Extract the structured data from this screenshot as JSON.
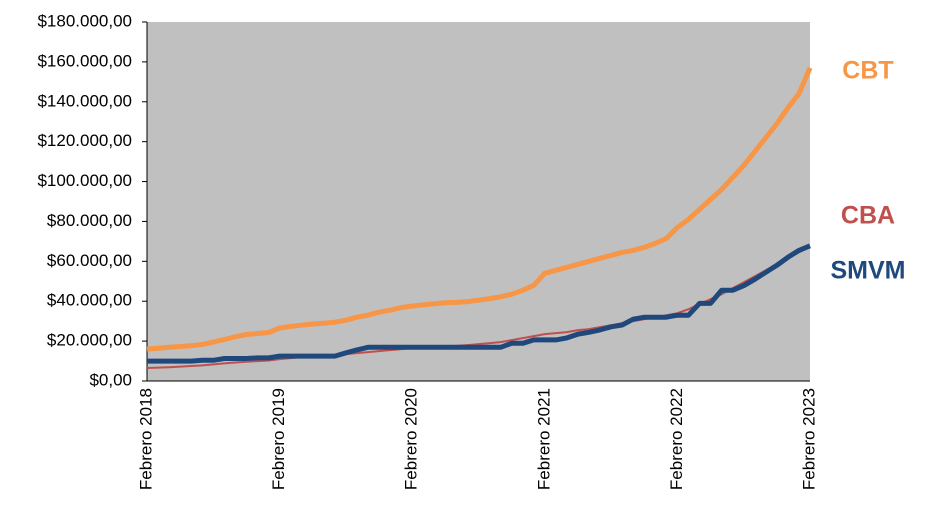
{
  "chart_data": {
    "type": "line",
    "categories": [
      "Febrero 2018",
      null,
      null,
      null,
      null,
      null,
      null,
      null,
      null,
      null,
      null,
      null,
      "Febrero 2019",
      null,
      null,
      null,
      null,
      null,
      null,
      null,
      null,
      null,
      null,
      null,
      "Febrero 2020",
      null,
      null,
      null,
      null,
      null,
      null,
      null,
      null,
      null,
      null,
      null,
      "Febrero 2021",
      null,
      null,
      null,
      null,
      null,
      null,
      null,
      null,
      null,
      null,
      null,
      "Febrero 2022",
      null,
      null,
      null,
      null,
      null,
      null,
      null,
      null,
      null,
      null,
      null,
      "Febrero 2023"
    ],
    "series": [
      {
        "name": "CBT",
        "color": "#f79646",
        "values": [
          16000,
          16400,
          16900,
          17300,
          17700,
          18300,
          19500,
          20800,
          22200,
          23300,
          23800,
          24300,
          26500,
          27400,
          28000,
          28600,
          29000,
          29500,
          30500,
          32000,
          33000,
          34500,
          35500,
          36800,
          37600,
          38200,
          38700,
          39200,
          39400,
          39800,
          40500,
          41300,
          42200,
          43500,
          45500,
          48000,
          54000,
          55500,
          57000,
          58500,
          60000,
          61500,
          63000,
          64500,
          65500,
          67000,
          69000,
          71500,
          77000,
          81000,
          86000,
          91000,
          96000,
          102000,
          108000,
          115000,
          122000,
          129000,
          137000,
          144000,
          157000
        ]
      },
      {
        "name": "CBA",
        "color": "#c0504d",
        "values": [
          6500,
          6700,
          6900,
          7200,
          7500,
          7800,
          8300,
          8800,
          9300,
          9700,
          10000,
          10300,
          11000,
          11500,
          12000,
          12300,
          12600,
          13000,
          13500,
          14000,
          14500,
          15000,
          15500,
          16000,
          16500,
          16800,
          17000,
          17300,
          17600,
          18000,
          18500,
          19000,
          19500,
          20500,
          21500,
          22500,
          23500,
          24000,
          24500,
          25500,
          26000,
          27000,
          28000,
          29000,
          30000,
          31000,
          32000,
          33000,
          34000,
          36000,
          38500,
          41000,
          43500,
          46500,
          49500,
          52500,
          55500,
          58500,
          61500,
          64500,
          67500
        ]
      },
      {
        "name": "SMVM",
        "color": "#1f497d",
        "values": [
          10000,
          10000,
          10000,
          10000,
          10000,
          10400,
          10400,
          11300,
          11300,
          11300,
          11600,
          11600,
          12500,
          12500,
          12500,
          12500,
          12500,
          12500,
          14100,
          15600,
          16900,
          16900,
          16900,
          16900,
          16900,
          16900,
          16900,
          16900,
          16900,
          16900,
          16900,
          16900,
          16900,
          18900,
          18900,
          20600,
          20600,
          20600,
          21600,
          23500,
          24400,
          25600,
          27200,
          28100,
          31000,
          32000,
          32000,
          32000,
          33000,
          33000,
          38900,
          38900,
          45500,
          45500,
          47800,
          51000,
          54500,
          58000,
          62000,
          65500,
          67800
        ]
      }
    ],
    "ylim": [
      0,
      180000
    ],
    "yticks": [
      {
        "value": 0,
        "label": "$0,00"
      },
      {
        "value": 20000,
        "label": "$20.000,00"
      },
      {
        "value": 40000,
        "label": "$40.000,00"
      },
      {
        "value": 60000,
        "label": "$60.000,00"
      },
      {
        "value": 80000,
        "label": "$80.000,00"
      },
      {
        "value": 100000,
        "label": "$100.000,00"
      },
      {
        "value": 120000,
        "label": "$120.000,00"
      },
      {
        "value": 140000,
        "label": "$140.000,00"
      },
      {
        "value": 160000,
        "label": "$160.000,00"
      },
      {
        "value": 180000,
        "label": "$180.000,00"
      }
    ],
    "grid": false
  }
}
